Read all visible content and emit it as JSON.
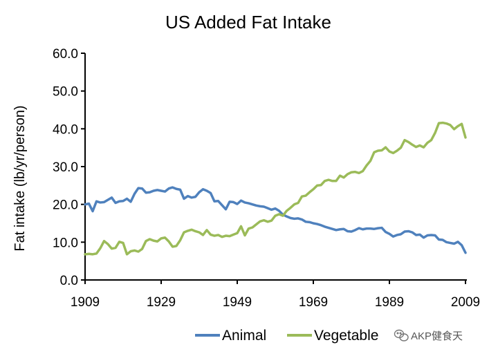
{
  "chart_data": {
    "type": "line",
    "title": "US Added Fat Intake",
    "xlabel": "",
    "ylabel": "Fat intake (lb/yr/person)",
    "xlim": [
      1909,
      2009
    ],
    "ylim": [
      0,
      60
    ],
    "x_ticks": [
      "1909",
      "1929",
      "1949",
      "1969",
      "1989",
      "2009"
    ],
    "y_ticks": [
      "0.0",
      "10.0",
      "20.0",
      "30.0",
      "40.0",
      "50.0",
      "60.0"
    ],
    "grid": false,
    "legend_position": "bottom",
    "series": [
      {
        "name": "Animal",
        "color": "#4f81bd",
        "points": [
          [
            1909,
            20.0
          ],
          [
            1910,
            20.2
          ],
          [
            1911,
            18.2
          ],
          [
            1912,
            20.8
          ],
          [
            1913,
            20.5
          ],
          [
            1914,
            20.6
          ],
          [
            1915,
            21.2
          ],
          [
            1916,
            21.8
          ],
          [
            1917,
            20.4
          ],
          [
            1918,
            20.8
          ],
          [
            1919,
            20.9
          ],
          [
            1920,
            21.5
          ],
          [
            1921,
            20.7
          ],
          [
            1922,
            22.8
          ],
          [
            1923,
            24.3
          ],
          [
            1924,
            24.2
          ],
          [
            1925,
            23.1
          ],
          [
            1926,
            23.2
          ],
          [
            1927,
            23.6
          ],
          [
            1928,
            23.8
          ],
          [
            1929,
            23.6
          ],
          [
            1930,
            23.4
          ],
          [
            1931,
            24.2
          ],
          [
            1932,
            24.5
          ],
          [
            1933,
            24.1
          ],
          [
            1934,
            23.9
          ],
          [
            1935,
            21.5
          ],
          [
            1936,
            22.2
          ],
          [
            1937,
            21.8
          ],
          [
            1938,
            22.0
          ],
          [
            1939,
            23.2
          ],
          [
            1940,
            24.0
          ],
          [
            1941,
            23.6
          ],
          [
            1942,
            23.0
          ],
          [
            1943,
            20.8
          ],
          [
            1944,
            20.9
          ],
          [
            1945,
            19.8
          ],
          [
            1946,
            18.7
          ],
          [
            1947,
            20.7
          ],
          [
            1948,
            20.6
          ],
          [
            1949,
            20.1
          ],
          [
            1950,
            21.0
          ],
          [
            1951,
            20.5
          ],
          [
            1952,
            20.3
          ],
          [
            1953,
            20.0
          ],
          [
            1954,
            19.7
          ],
          [
            1955,
            19.5
          ],
          [
            1956,
            19.4
          ],
          [
            1957,
            19.0
          ],
          [
            1958,
            18.6
          ],
          [
            1959,
            18.9
          ],
          [
            1960,
            18.3
          ],
          [
            1961,
            17.3
          ],
          [
            1962,
            16.8
          ],
          [
            1963,
            16.4
          ],
          [
            1964,
            16.2
          ],
          [
            1965,
            16.3
          ],
          [
            1966,
            16.0
          ],
          [
            1967,
            15.4
          ],
          [
            1968,
            15.3
          ],
          [
            1969,
            15.0
          ],
          [
            1970,
            14.8
          ],
          [
            1971,
            14.5
          ],
          [
            1972,
            14.1
          ],
          [
            1973,
            13.8
          ],
          [
            1974,
            13.5
          ],
          [
            1975,
            13.2
          ],
          [
            1976,
            13.4
          ],
          [
            1977,
            13.5
          ],
          [
            1978,
            12.9
          ],
          [
            1979,
            12.8
          ],
          [
            1980,
            13.2
          ],
          [
            1981,
            13.7
          ],
          [
            1982,
            13.4
          ],
          [
            1983,
            13.6
          ],
          [
            1984,
            13.6
          ],
          [
            1985,
            13.5
          ],
          [
            1986,
            13.7
          ],
          [
            1987,
            13.8
          ],
          [
            1988,
            12.7
          ],
          [
            1989,
            12.2
          ],
          [
            1990,
            11.5
          ],
          [
            1991,
            11.9
          ],
          [
            1992,
            12.1
          ],
          [
            1993,
            12.8
          ],
          [
            1994,
            12.9
          ],
          [
            1995,
            12.6
          ],
          [
            1996,
            11.9
          ],
          [
            1997,
            12.0
          ],
          [
            1998,
            11.2
          ],
          [
            1999,
            11.8
          ],
          [
            2000,
            11.9
          ],
          [
            2001,
            11.8
          ],
          [
            2002,
            10.7
          ],
          [
            2003,
            10.6
          ],
          [
            2004,
            10.0
          ],
          [
            2005,
            9.8
          ],
          [
            2006,
            9.6
          ],
          [
            2007,
            10.1
          ],
          [
            2008,
            9.2
          ],
          [
            2009,
            7.2
          ]
        ]
      },
      {
        "name": "Vegetable",
        "color": "#9bbb59",
        "points": [
          [
            1909,
            6.8
          ],
          [
            1910,
            6.9
          ],
          [
            1911,
            6.8
          ],
          [
            1912,
            7.0
          ],
          [
            1913,
            8.4
          ],
          [
            1914,
            10.3
          ],
          [
            1915,
            9.5
          ],
          [
            1916,
            8.3
          ],
          [
            1917,
            8.5
          ],
          [
            1918,
            10.1
          ],
          [
            1919,
            9.8
          ],
          [
            1920,
            6.8
          ],
          [
            1921,
            7.6
          ],
          [
            1922,
            7.8
          ],
          [
            1923,
            7.5
          ],
          [
            1924,
            8.2
          ],
          [
            1925,
            10.3
          ],
          [
            1926,
            10.8
          ],
          [
            1927,
            10.4
          ],
          [
            1928,
            10.2
          ],
          [
            1929,
            11.0
          ],
          [
            1930,
            11.2
          ],
          [
            1931,
            10.2
          ],
          [
            1932,
            8.8
          ],
          [
            1933,
            9.0
          ],
          [
            1934,
            10.5
          ],
          [
            1935,
            12.6
          ],
          [
            1936,
            13.0
          ],
          [
            1937,
            13.3
          ],
          [
            1938,
            12.9
          ],
          [
            1939,
            12.6
          ],
          [
            1940,
            11.9
          ],
          [
            1941,
            13.2
          ],
          [
            1942,
            12.0
          ],
          [
            1943,
            11.7
          ],
          [
            1944,
            11.9
          ],
          [
            1945,
            11.4
          ],
          [
            1946,
            11.7
          ],
          [
            1947,
            11.6
          ],
          [
            1948,
            12.0
          ],
          [
            1949,
            12.4
          ],
          [
            1950,
            14.2
          ],
          [
            1951,
            11.8
          ],
          [
            1952,
            13.6
          ],
          [
            1953,
            13.9
          ],
          [
            1954,
            14.7
          ],
          [
            1955,
            15.5
          ],
          [
            1956,
            15.8
          ],
          [
            1957,
            15.4
          ],
          [
            1958,
            15.7
          ],
          [
            1959,
            17.0
          ],
          [
            1960,
            17.4
          ],
          [
            1961,
            17.0
          ],
          [
            1962,
            18.3
          ],
          [
            1963,
            19.1
          ],
          [
            1964,
            20.0
          ],
          [
            1965,
            20.4
          ],
          [
            1966,
            22.1
          ],
          [
            1967,
            22.3
          ],
          [
            1968,
            23.2
          ],
          [
            1969,
            24.0
          ],
          [
            1970,
            25.0
          ],
          [
            1971,
            25.1
          ],
          [
            1972,
            26.2
          ],
          [
            1973,
            26.5
          ],
          [
            1974,
            26.2
          ],
          [
            1975,
            26.2
          ],
          [
            1976,
            27.6
          ],
          [
            1977,
            27.1
          ],
          [
            1978,
            28.0
          ],
          [
            1979,
            28.5
          ],
          [
            1980,
            28.6
          ],
          [
            1981,
            28.3
          ],
          [
            1982,
            28.8
          ],
          [
            1983,
            30.3
          ],
          [
            1984,
            31.5
          ],
          [
            1985,
            33.8
          ],
          [
            1986,
            34.2
          ],
          [
            1987,
            34.3
          ],
          [
            1988,
            35.1
          ],
          [
            1989,
            34.0
          ],
          [
            1990,
            33.6
          ],
          [
            1991,
            34.2
          ],
          [
            1992,
            35.0
          ],
          [
            1993,
            37.0
          ],
          [
            1994,
            36.5
          ],
          [
            1995,
            35.8
          ],
          [
            1996,
            35.2
          ],
          [
            1997,
            35.6
          ],
          [
            1998,
            35.1
          ],
          [
            1999,
            36.3
          ],
          [
            2000,
            37.0
          ],
          [
            2001,
            38.9
          ],
          [
            2002,
            41.5
          ],
          [
            2003,
            41.6
          ],
          [
            2004,
            41.4
          ],
          [
            2005,
            41.0
          ],
          [
            2006,
            39.9
          ],
          [
            2007,
            40.7
          ],
          [
            2008,
            41.3
          ],
          [
            2009,
            37.7
          ]
        ]
      }
    ]
  },
  "watermark": {
    "icon": "wechat-icon",
    "text": "AKP健食天"
  }
}
